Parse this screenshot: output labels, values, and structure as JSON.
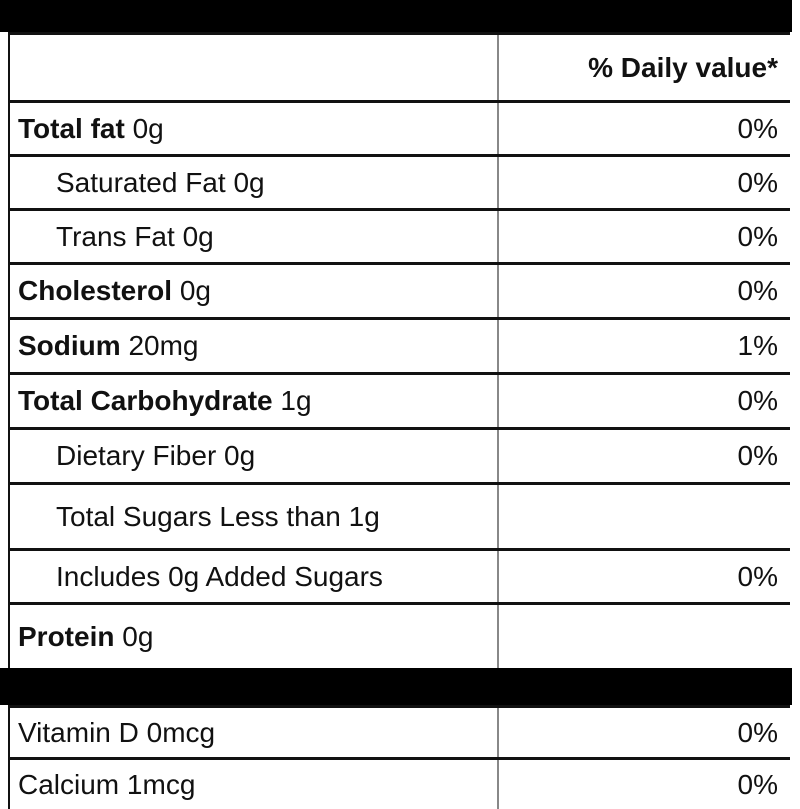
{
  "header": {
    "dv_heading": "% Daily value*"
  },
  "rows": [
    {
      "name": "Total fat",
      "amount": "0g",
      "dv": "0%",
      "bold": true
    },
    {
      "name": "Saturated Fat",
      "amount": "0g",
      "dv": "0%",
      "indent": true
    },
    {
      "name": "Trans Fat",
      "amount": "0g",
      "dv": "0%",
      "indent": true
    },
    {
      "name": "Cholesterol",
      "amount": "0g",
      "dv": "0%",
      "bold": true
    },
    {
      "name": "Sodium",
      "amount": "20mg",
      "dv": "1%",
      "bold": true
    },
    {
      "name": "Total Carbohydrate",
      "amount": "1g",
      "dv": "0%",
      "bold": true
    },
    {
      "name": "Dietary Fiber",
      "amount": "0g",
      "dv": "0%",
      "indent": true
    },
    {
      "name": "Total Sugars",
      "amount": "Less than 1g",
      "indent": true
    },
    {
      "name": "Includes",
      "amount": "0g Added Sugars",
      "dv": "0%",
      "indent": true
    },
    {
      "name": "Protein",
      "amount": "0g",
      "bold": true
    }
  ],
  "vitamins": [
    {
      "name": "Vitamin D",
      "amount": "0mcg",
      "dv": "0%"
    },
    {
      "name": "Calcium",
      "amount": "1mcg",
      "dv": "0%"
    }
  ]
}
